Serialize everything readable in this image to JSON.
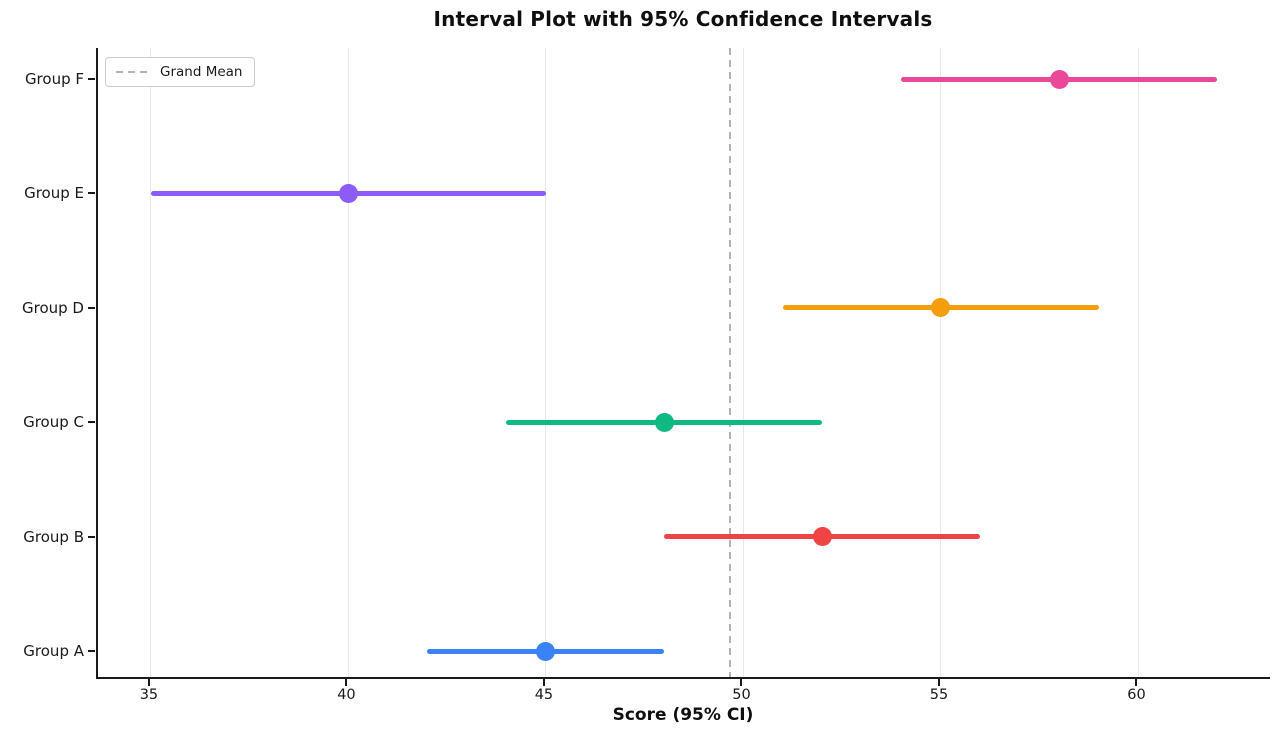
{
  "chart_data": {
    "type": "interval",
    "title": "Interval Plot with 95% Confidence Intervals",
    "xlabel": "Score (95% CI)",
    "ylabel": "",
    "groups": [
      {
        "label": "Group A",
        "mean": 45,
        "ci_low": 42,
        "ci_high": 48,
        "color": "#3b82f6"
      },
      {
        "label": "Group B",
        "mean": 52,
        "ci_low": 48,
        "ci_high": 56,
        "color": "#ef4444"
      },
      {
        "label": "Group C",
        "mean": 48,
        "ci_low": 44,
        "ci_high": 52,
        "color": "#10b981"
      },
      {
        "label": "Group D",
        "mean": 55,
        "ci_low": 51,
        "ci_high": 59,
        "color": "#f59e0b"
      },
      {
        "label": "Group E",
        "mean": 40,
        "ci_low": 35,
        "ci_high": 45,
        "color": "#8b5cf6"
      },
      {
        "label": "Group F",
        "mean": 58,
        "ci_low": 54,
        "ci_high": 62,
        "color": "#ec4899"
      }
    ],
    "grand_mean": 49.67,
    "legend": {
      "label": "Grand Mean",
      "line_color": "#b3b3b3",
      "position": "upper left"
    },
    "x_ticks": [
      35,
      40,
      45,
      50,
      55,
      60
    ],
    "xlim": [
      33.66,
      63.38
    ],
    "grid": "vertical-only",
    "gridline_color": "#e8e8e8"
  }
}
